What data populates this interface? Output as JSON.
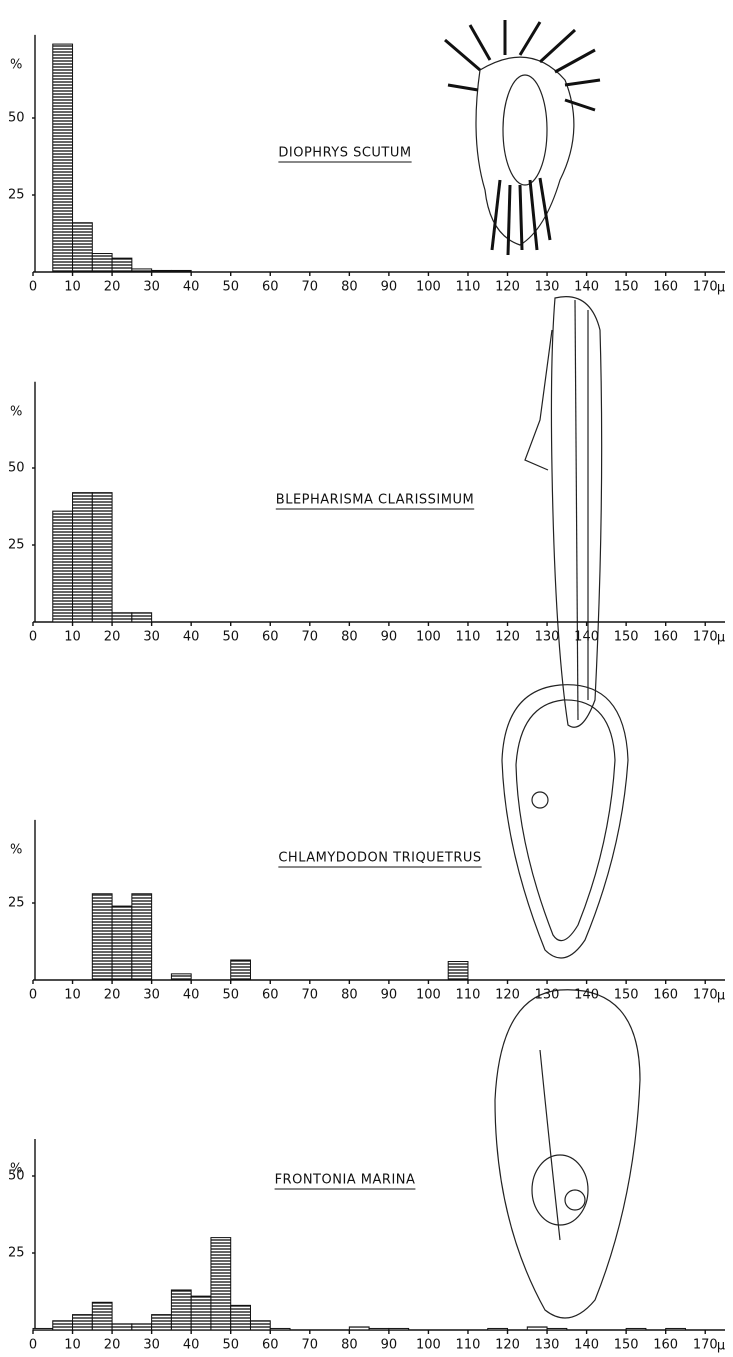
{
  "chart_data": [
    {
      "type": "histogram",
      "title": "DIOPHRYS SCUTUM",
      "bins": [
        0,
        5,
        10,
        15,
        20,
        25,
        30,
        35,
        40,
        45,
        50,
        55,
        60,
        65,
        70,
        75,
        80,
        85,
        90,
        95,
        100,
        105,
        110,
        115,
        120,
        125,
        130,
        135,
        140,
        145,
        150,
        155,
        160,
        165,
        170
      ],
      "values": [
        0,
        74,
        16,
        6,
        4.5,
        1,
        0.5,
        0.5,
        0,
        0,
        0,
        0,
        0,
        0,
        0,
        0,
        0,
        0,
        0,
        0,
        0,
        0,
        0,
        0,
        0,
        0,
        0,
        0,
        0,
        0,
        0,
        0,
        0,
        0
      ],
      "xlim": [
        0,
        175
      ],
      "ylim": [
        0,
        77
      ],
      "xticks": [
        0,
        10,
        20,
        30,
        40,
        50,
        60,
        70,
        80,
        90,
        100,
        110,
        120,
        130,
        140,
        150,
        160,
        170
      ],
      "yticks": [
        25,
        50
      ],
      "x_unit": "μ",
      "y_unit": "%"
    },
    {
      "type": "histogram",
      "title": "BLEPHARISMA CLARISSIMUM",
      "bins": [
        0,
        5,
        10,
        15,
        20,
        25,
        30,
        35,
        40,
        45,
        50,
        55,
        60,
        65,
        70,
        75,
        80,
        85,
        90,
        95,
        100,
        105,
        110,
        115,
        120,
        125,
        130,
        135,
        140,
        145,
        150,
        155,
        160,
        165,
        170
      ],
      "values": [
        0,
        36,
        42,
        42,
        3,
        3,
        0,
        0,
        0,
        0,
        0,
        0,
        0,
        0,
        0,
        0,
        0,
        0,
        0,
        0,
        0,
        0,
        0,
        0,
        0,
        0,
        0,
        0,
        0,
        0,
        0,
        0,
        0,
        0
      ],
      "xlim": [
        0,
        175
      ],
      "ylim": [
        0,
        78
      ],
      "xticks": [
        0,
        10,
        20,
        30,
        40,
        50,
        60,
        70,
        80,
        90,
        100,
        110,
        120,
        130,
        140,
        150,
        160,
        170
      ],
      "yticks": [
        25,
        50
      ],
      "x_unit": "μ",
      "y_unit": "%"
    },
    {
      "type": "histogram",
      "title": "CHLAMYDODON TRIQUETRUS",
      "bins": [
        0,
        5,
        10,
        15,
        20,
        25,
        30,
        35,
        40,
        45,
        50,
        55,
        60,
        65,
        70,
        75,
        80,
        85,
        90,
        95,
        100,
        105,
        110,
        115,
        120,
        125,
        130,
        135,
        140,
        145,
        150,
        155,
        160,
        165,
        170
      ],
      "values": [
        0,
        0,
        0,
        28,
        24,
        28,
        0,
        2,
        0,
        0,
        6.5,
        0,
        0,
        0,
        0,
        0,
        0,
        0,
        0,
        0,
        0,
        6,
        0,
        0,
        0,
        0,
        0,
        0,
        0,
        0,
        0,
        0,
        0,
        0
      ],
      "xlim": [
        0,
        175
      ],
      "ylim": [
        0,
        52
      ],
      "xticks": [
        0,
        10,
        20,
        30,
        40,
        50,
        60,
        70,
        80,
        90,
        100,
        110,
        120,
        130,
        140,
        150,
        160,
        170
      ],
      "yticks": [
        25
      ],
      "x_unit": "μ",
      "y_unit": "%"
    },
    {
      "type": "histogram",
      "title": "FRONTONIA MARINA",
      "bins": [
        0,
        5,
        10,
        15,
        20,
        25,
        30,
        35,
        40,
        45,
        50,
        55,
        60,
        65,
        70,
        75,
        80,
        85,
        90,
        95,
        100,
        105,
        110,
        115,
        120,
        125,
        130,
        135,
        140,
        145,
        150,
        155,
        160,
        165,
        170
      ],
      "values": [
        0.5,
        3,
        5,
        9,
        2,
        2,
        5,
        13,
        11,
        30,
        8,
        3,
        0.5,
        0,
        0,
        0,
        1,
        0.5,
        0.5,
        0,
        0,
        0,
        0,
        0.5,
        0,
        1,
        0.5,
        0,
        0,
        0,
        0.5,
        0,
        0.5,
        0
      ],
      "xlim": [
        0,
        175
      ],
      "ylim": [
        0,
        62
      ],
      "xticks": [
        0,
        10,
        20,
        30,
        40,
        50,
        60,
        70,
        80,
        90,
        100,
        110,
        120,
        130,
        140,
        150,
        160,
        170
      ],
      "yticks": [
        25,
        50
      ],
      "x_unit": "μ",
      "y_unit": "%"
    }
  ]
}
